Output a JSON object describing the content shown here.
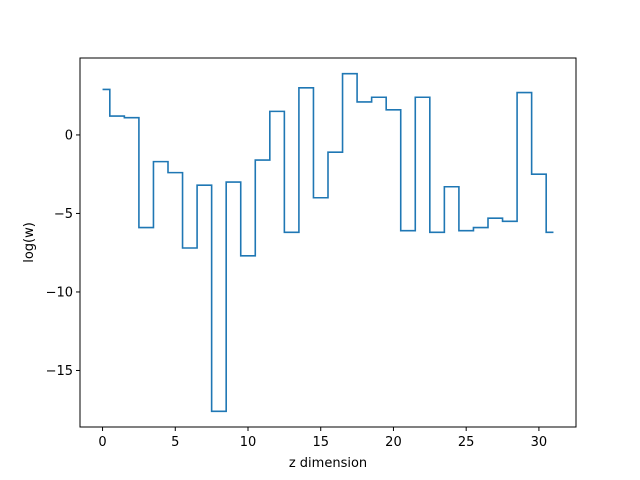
{
  "chart_data": {
    "type": "line",
    "drawstyle": "steps-mid",
    "title": "",
    "xlabel": "z dimension",
    "ylabel": "log(w)",
    "xlim": [
      -1.55,
      32.55
    ],
    "ylim": [
      -18.6,
      4.9
    ],
    "xticks": [
      0,
      5,
      10,
      15,
      20,
      25,
      30
    ],
    "xtick_labels": [
      "0",
      "5",
      "10",
      "15",
      "20",
      "25",
      "30"
    ],
    "yticks": [
      0,
      -5,
      -10,
      -15
    ],
    "ytick_labels": [
      "0",
      "−5",
      "−10",
      "−15"
    ],
    "grid": false,
    "legend": "none",
    "colors": {
      "line": "#1f77b4"
    },
    "x": [
      0,
      1,
      2,
      3,
      4,
      5,
      6,
      7,
      8,
      9,
      10,
      11,
      12,
      13,
      14,
      15,
      16,
      17,
      18,
      19,
      20,
      21,
      22,
      23,
      24,
      25,
      26,
      27,
      28,
      29,
      30,
      31
    ],
    "values": [
      2.9,
      1.2,
      1.1,
      -5.9,
      -1.7,
      -2.4,
      -7.2,
      -3.2,
      -17.6,
      -3.0,
      -7.7,
      -1.6,
      1.5,
      -6.2,
      3.0,
      -4.0,
      -1.1,
      3.9,
      2.1,
      2.4,
      1.6,
      -6.1,
      2.4,
      -6.2,
      -3.3,
      -6.1,
      -5.9,
      -5.3,
      -5.5,
      2.7,
      -2.5,
      -6.2
    ]
  }
}
